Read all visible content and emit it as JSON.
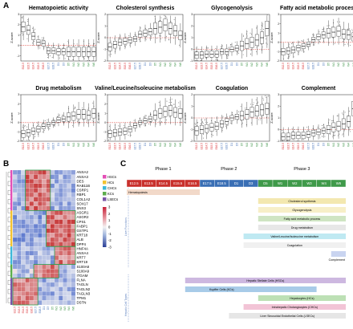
{
  "panels": {
    "a": "A",
    "b": "B",
    "c": "C"
  },
  "a_ylabel": "Z-score",
  "a_xcats": [
    {
      "label": "E12.5",
      "color": "#d8262b"
    },
    {
      "label": "E13.5",
      "color": "#d8262b"
    },
    {
      "label": "E14.5",
      "color": "#d8262b"
    },
    {
      "label": "E15.5",
      "color": "#d8262b"
    },
    {
      "label": "E16.5",
      "color": "#d8262b"
    },
    {
      "label": "E17.5",
      "color": "#3e6db5"
    },
    {
      "label": "E18.5",
      "color": "#3e6db5"
    },
    {
      "label": "D1",
      "color": "#3e6db5"
    },
    {
      "label": "D3",
      "color": "#3e6db5"
    },
    {
      "label": "D5",
      "color": "#2e8b3a"
    },
    {
      "label": "W1",
      "color": "#2e8b3a"
    },
    {
      "label": "W2",
      "color": "#2e8b3a"
    },
    {
      "label": "W3",
      "color": "#2e8b3a"
    },
    {
      "label": "W4",
      "color": "#2e8b3a"
    },
    {
      "label": "W6",
      "color": "#2e8b3a"
    }
  ],
  "chart_data": [
    {
      "type": "box",
      "title": "Hematopoietic activity",
      "ylabel": "Z-score",
      "ylim": [
        -1.5,
        3
      ],
      "categories": [
        "E12.5",
        "E13.5",
        "E14.5",
        "E15.5",
        "E16.5",
        "E17.5",
        "E18.5",
        "D1",
        "D3",
        "D5",
        "W1",
        "W2",
        "W3",
        "W4",
        "W6"
      ],
      "medians": [
        1.8,
        1.5,
        0.9,
        0.3,
        0.2,
        -0.5,
        -0.5,
        -0.6,
        -0.6,
        -0.6,
        -0.6,
        -0.6,
        -0.6,
        -0.6,
        -0.6
      ]
    },
    {
      "type": "box",
      "title": "Cholesterol synthesis",
      "ylabel": "Z-score",
      "ylim": [
        -2,
        2
      ],
      "categories": [
        "E12.5",
        "E13.5",
        "E14.5",
        "E15.5",
        "E16.5",
        "E17.5",
        "E18.5",
        "D1",
        "D3",
        "D5",
        "W1",
        "W2",
        "W3",
        "W4",
        "W6"
      ],
      "medians": [
        -0.8,
        -0.6,
        -0.4,
        -0.3,
        -0.2,
        -0.1,
        0.3,
        0.4,
        0.5,
        0.8,
        0.9,
        1.1,
        0.8,
        0.6,
        0.2
      ]
    },
    {
      "type": "box",
      "title": "Glycogenolysis",
      "ylabel": "Z-score",
      "ylim": [
        -1,
        3
      ],
      "categories": [
        "E12.5",
        "E13.5",
        "E14.5",
        "E15.5",
        "E16.5",
        "E17.5",
        "E18.5",
        "D1",
        "D3",
        "D5",
        "W1",
        "W2",
        "W3",
        "W4",
        "W6"
      ],
      "medians": [
        -0.5,
        -0.5,
        -0.4,
        -0.4,
        -0.4,
        -0.2,
        -0.2,
        0.0,
        0.1,
        0.3,
        0.5,
        0.6,
        0.8,
        1.0,
        1.8
      ]
    },
    {
      "type": "box",
      "title": "Fatty acid metabolic process",
      "ylabel": "Z-score",
      "ylim": [
        -2,
        3
      ],
      "categories": [
        "E12.5",
        "E13.5",
        "E14.5",
        "E15.5",
        "E16.5",
        "E17.5",
        "E18.5",
        "D1",
        "D3",
        "D5",
        "W1",
        "W2",
        "W3",
        "W4",
        "W6"
      ],
      "medians": [
        -1.0,
        -0.9,
        -0.8,
        -0.6,
        -0.4,
        -0.2,
        0.3,
        0.6,
        0.8,
        1.0,
        1.1,
        1.2,
        0.9,
        0.8,
        0.6
      ]
    },
    {
      "type": "box",
      "title": "Drug metabolism",
      "ylabel": "Z-score",
      "ylim": [
        -2,
        3
      ],
      "categories": [
        "E12.5",
        "E13.5",
        "E14.5",
        "E15.5",
        "E16.5",
        "E17.5",
        "E18.5",
        "D1",
        "D3",
        "D5",
        "W1",
        "W2",
        "W3",
        "W4",
        "W6"
      ],
      "medians": [
        -1.2,
        -1.1,
        -0.9,
        -0.7,
        -0.4,
        -0.2,
        0.0,
        0.3,
        0.4,
        0.6,
        0.7,
        0.9,
        0.9,
        0.8,
        1.0
      ]
    },
    {
      "type": "box",
      "title": "Valine/Leucine/Isoleucine metabolism",
      "ylabel": "Z-score",
      "ylim": [
        -2,
        3
      ],
      "categories": [
        "E12.5",
        "E13.5",
        "E14.5",
        "E15.5",
        "E16.5",
        "E17.5",
        "E18.5",
        "D1",
        "D3",
        "D5",
        "W1",
        "W2",
        "W3",
        "W4",
        "W6"
      ],
      "medians": [
        -1.2,
        -1.1,
        -1.0,
        -0.9,
        -0.7,
        -0.3,
        0.0,
        0.2,
        0.4,
        0.8,
        1.0,
        1.2,
        1.3,
        1.1,
        1.0
      ]
    },
    {
      "type": "box",
      "title": "Coagulation",
      "ylabel": "Z-score",
      "ylim": [
        -2,
        2
      ],
      "categories": [
        "E12.5",
        "E13.5",
        "E14.5",
        "E15.5",
        "E16.5",
        "E17.5",
        "E18.5",
        "D1",
        "D3",
        "D5",
        "W1",
        "W2",
        "W3",
        "W4",
        "W6"
      ],
      "medians": [
        -1.1,
        -1.0,
        -0.9,
        -0.8,
        -0.7,
        -0.5,
        -0.3,
        0.0,
        0.1,
        0.2,
        0.3,
        0.5,
        0.6,
        0.7,
        0.8
      ]
    },
    {
      "type": "box",
      "title": "Complement",
      "ylabel": "Z-score",
      "ylim": [
        -1,
        3
      ],
      "categories": [
        "E12.5",
        "E13.5",
        "E14.5",
        "E15.5",
        "E16.5",
        "E17.5",
        "E18.5",
        "D1",
        "D3",
        "D5",
        "W1",
        "W2",
        "W3",
        "W4",
        "W6"
      ],
      "medians": [
        -0.6,
        -0.6,
        -0.5,
        -0.5,
        -0.5,
        -0.4,
        -0.3,
        -0.2,
        -0.1,
        0.0,
        0.2,
        0.3,
        0.5,
        0.7,
        1.8
      ]
    }
  ],
  "heatmap": {
    "genes": [
      "ANXA2",
      "ANXA3",
      "DES",
      "RAB11B",
      "CSRP1",
      "RBP1",
      "COL1A2",
      "SOX17",
      "SNX3",
      "ASGR1",
      "ASGR2",
      "CPS1",
      "FABP1",
      "GSTP1",
      "KRT18",
      "ALB",
      "DPP4",
      "HNF4A",
      "ANXA4",
      "KRT7",
      "KRT19",
      "S100A8",
      "S100A9",
      "ITGAM",
      "FLNA",
      "TAGLN",
      "TAGLN2",
      "TAGLN3",
      "TPM1",
      "DSTN"
    ],
    "legend": [
      {
        "label": "HSCs",
        "color": "#e34fb6"
      },
      {
        "label": "HCs",
        "color": "#f2c230"
      },
      {
        "label": "CHCs",
        "color": "#3db8d9"
      },
      {
        "label": "KCs",
        "color": "#5cae4c"
      },
      {
        "label": "LSECs",
        "color": "#7a57a8"
      }
    ],
    "scale": [
      "3",
      "2",
      "1",
      "0",
      "-1",
      "-2",
      "-3"
    ]
  },
  "timeline": {
    "phases": [
      "Phase 1",
      "Phase 2",
      "Phase 3"
    ],
    "segments": [
      "E12.5",
      "E13.5",
      "E14.5",
      "E15.5",
      "E16.5",
      "E17.5",
      "E18.5",
      "D1",
      "D3",
      "D5",
      "W1",
      "W2",
      "W3",
      "W4",
      "W6"
    ],
    "side_labels": [
      "Liver Functions",
      "Hepatic Cell Types"
    ],
    "functions": [
      "Hematopoiesis",
      "Cholesterol synthesis",
      "Glycogenolysis",
      "Fatty acid metabolic process",
      "Drug metabolism",
      "Valine/Leucine/Isoleucine metabolism",
      "Coagulation",
      "Complement"
    ],
    "cells": [
      "Hepatic Stellate Cells (HSCs)",
      "Kupffer Cells (KCs)",
      "Hepatocytes (HCs)",
      "Intrahepatic Cholangiocytes (CHCs)",
      "Liver Sinusoidal Endothelial Cells (LSECs)"
    ],
    "colors": {
      "phase1": "#c9302c",
      "phase2": "#3a6fb5",
      "phase3": "#3f9a4a",
      "hema": "#f2d9c9",
      "chol": "#f3e8b0",
      "glyc": "#f7efc8",
      "fatty": "#cfe5c3",
      "drug": "#e7e7e7",
      "vli": "#bfe9f2",
      "coag": "#f0f0f0",
      "comp": "#c9d4f0",
      "hsc": "#cdb8e0",
      "kc": "#a8cbe8",
      "hc": "#bde0b5",
      "chc": "#f2c4d6",
      "lsec": "#e6e6e6"
    }
  }
}
